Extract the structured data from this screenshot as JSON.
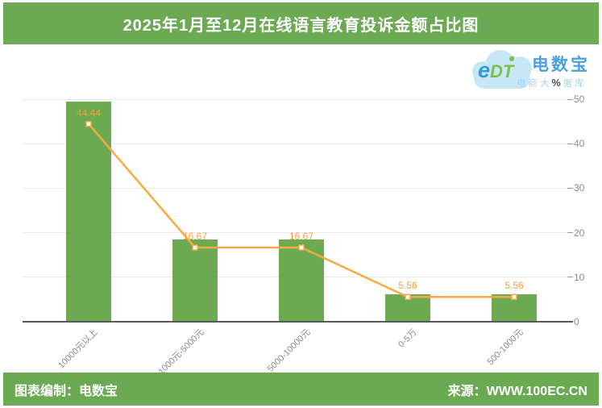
{
  "header": {
    "title": "2025年1月至12月在线语言教育投诉金额占比图"
  },
  "logo": {
    "mark_e": "e",
    "mark_dt": "DT",
    "brand": "电数宝",
    "subtitle_left": "电商大",
    "subtitle_right": "据库"
  },
  "chart_data": {
    "type": "bar",
    "overlay": "line",
    "title": "2025年1月至12月在线语言教育投诉金额占比图",
    "categories": [
      "10000元以上",
      "1000元-5000元",
      "5000-10000元",
      "0-5万",
      "500-1000元"
    ],
    "values": [
      44.44,
      16.67,
      16.67,
      5.56,
      5.56
    ],
    "point_labels": [
      "44.44",
      "16.67",
      "16.67",
      "5.56",
      "5.56"
    ],
    "xlabel": "",
    "ylabel": "",
    "y_axis": {
      "side": "right",
      "min": 0,
      "max": 50,
      "step": 10,
      "ticks": [
        "0",
        "10",
        "20",
        "30",
        "40",
        "50"
      ],
      "unit": "%"
    },
    "grid": true,
    "legend": false,
    "colors": {
      "bar": "#6BAA50",
      "line": "#F8A943",
      "point_label": "#F49F3C"
    }
  },
  "footer": {
    "left": "图表编制：电数宝",
    "right": "来源：WWW.100EC.CN"
  }
}
